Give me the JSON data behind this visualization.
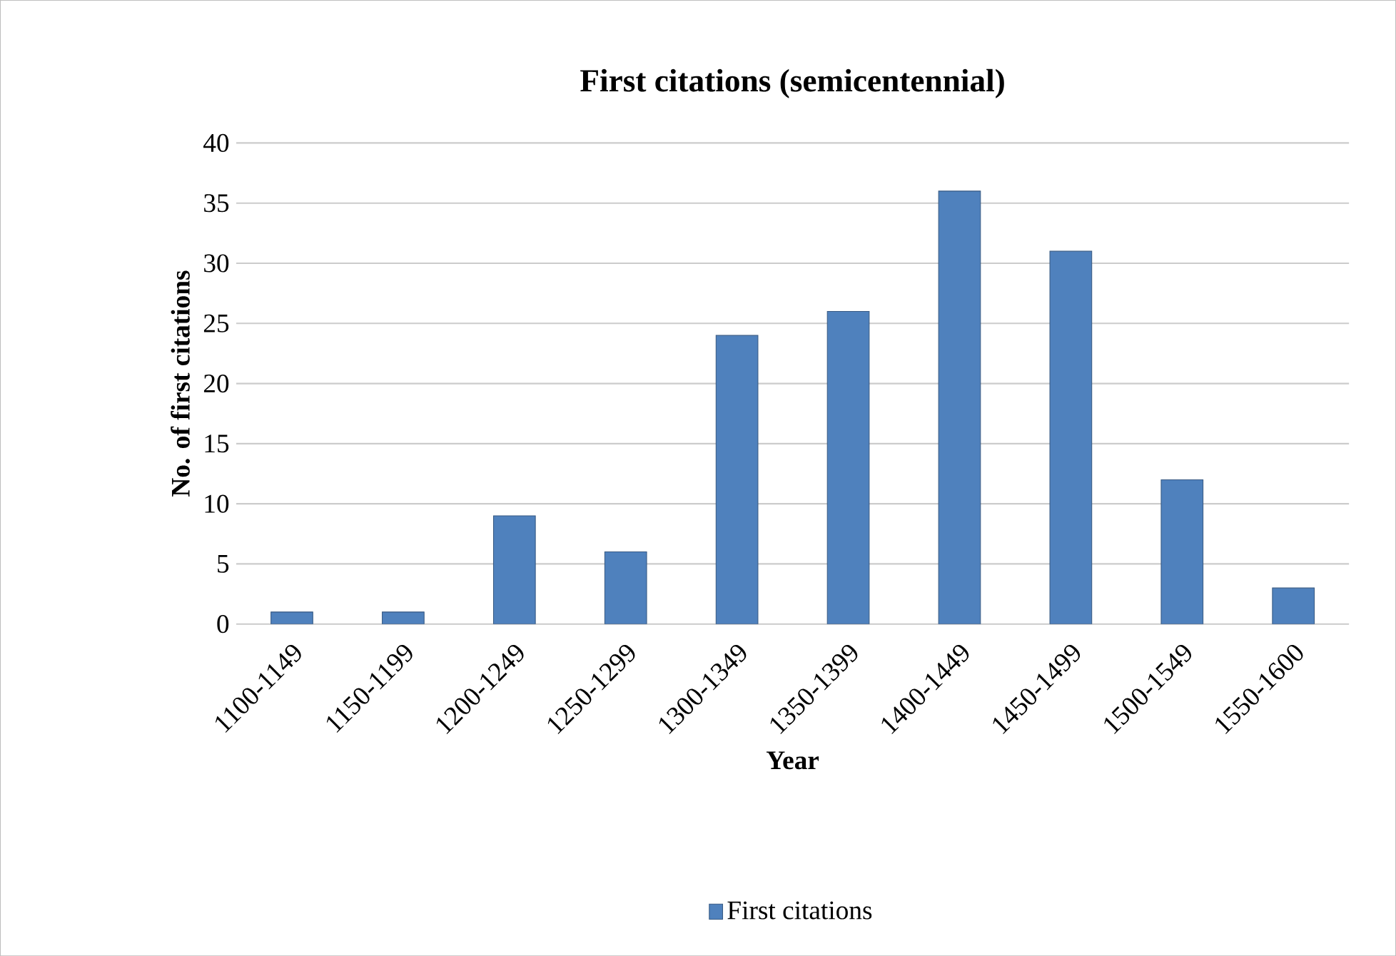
{
  "chart_data": {
    "type": "bar",
    "title": "First citations (semicentennial)",
    "xlabel": "Year",
    "ylabel": "No. of first citations",
    "categories": [
      "1100-1149",
      "1150-1199",
      "1200-1249",
      "1250-1299",
      "1300-1349",
      "1350-1399",
      "1400-1449",
      "1450-1499",
      "1500-1549",
      "1550-1600"
    ],
    "series": [
      {
        "name": "First citations",
        "color": "#4f81bd",
        "values": [
          1,
          1,
          9,
          6,
          24,
          26,
          36,
          31,
          12,
          3
        ]
      }
    ],
    "ylim": [
      0,
      40
    ],
    "yticks": [
      0,
      5,
      10,
      15,
      20,
      25,
      30,
      35,
      40
    ],
    "grid": "y",
    "legend": "bottom"
  }
}
